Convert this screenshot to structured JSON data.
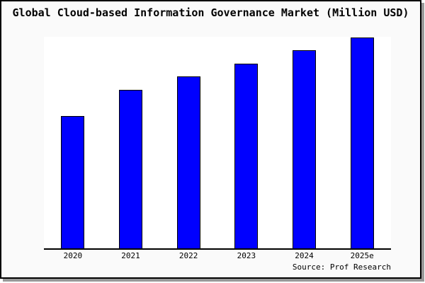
{
  "title": "Global Cloud-based Information Governance Market (Million USD)",
  "source": "Source: Prof Research",
  "colors": {
    "bar_fill": "#0000FF",
    "bar_border": "#000000",
    "figure_bg": "#FAFAFA",
    "plot_bg": "#FFFFFF",
    "axis": "#000000",
    "frame_border": "#000000",
    "shadow": "#999999"
  },
  "chart_data": {
    "type": "bar",
    "categories": [
      "2020",
      "2021",
      "2022",
      "2023",
      "2024",
      "2025e"
    ],
    "values": [
      62.4,
      74.8,
      81.3,
      87.4,
      93.5,
      99.7
    ],
    "title": "Global Cloud-based Information Governance Market (Million USD)",
    "xlabel": "",
    "ylabel": "",
    "ylim": [
      0,
      100
    ],
    "grid": false,
    "legend": null,
    "annotation": "Source: Prof Research"
  }
}
